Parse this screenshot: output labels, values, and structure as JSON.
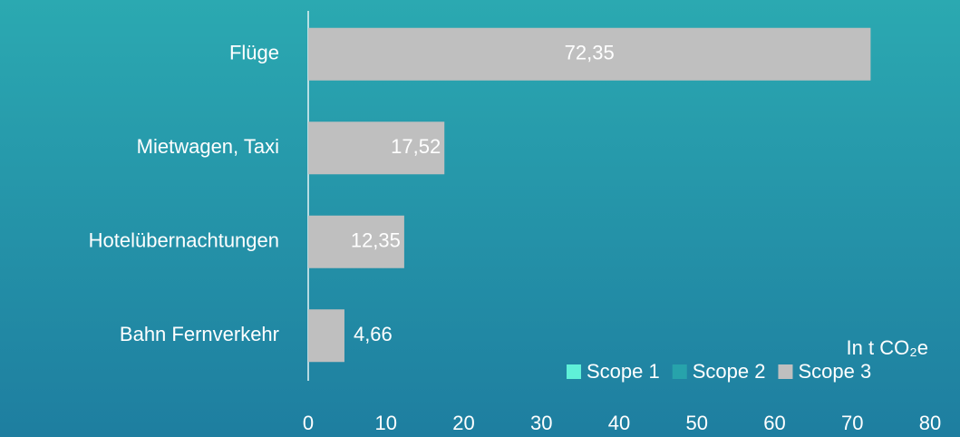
{
  "chart_data": {
    "type": "bar",
    "orientation": "horizontal",
    "stacked": true,
    "categories": [
      "Flüge",
      "Mietwagen, Taxi",
      "Hotelübernachtungen",
      "Bahn Fernverkehr"
    ],
    "series": [
      {
        "name": "Scope 1",
        "color": "#5ff0d8",
        "values": [
          0,
          0,
          0,
          0
        ]
      },
      {
        "name": "Scope 2",
        "color": "#27a3ab",
        "values": [
          0,
          0,
          0,
          0
        ]
      },
      {
        "name": "Scope 3",
        "color": "#bfbfbf",
        "values": [
          72.35,
          17.52,
          12.35,
          4.66
        ],
        "value_labels": [
          "72,35",
          "17,52",
          "12,35",
          "4,66"
        ]
      }
    ],
    "annotation": "In t CO₂e",
    "xlim": [
      0,
      80
    ],
    "xticks": [
      0,
      10,
      20,
      30,
      40,
      50,
      60,
      70,
      80
    ],
    "legend": "lower right"
  }
}
